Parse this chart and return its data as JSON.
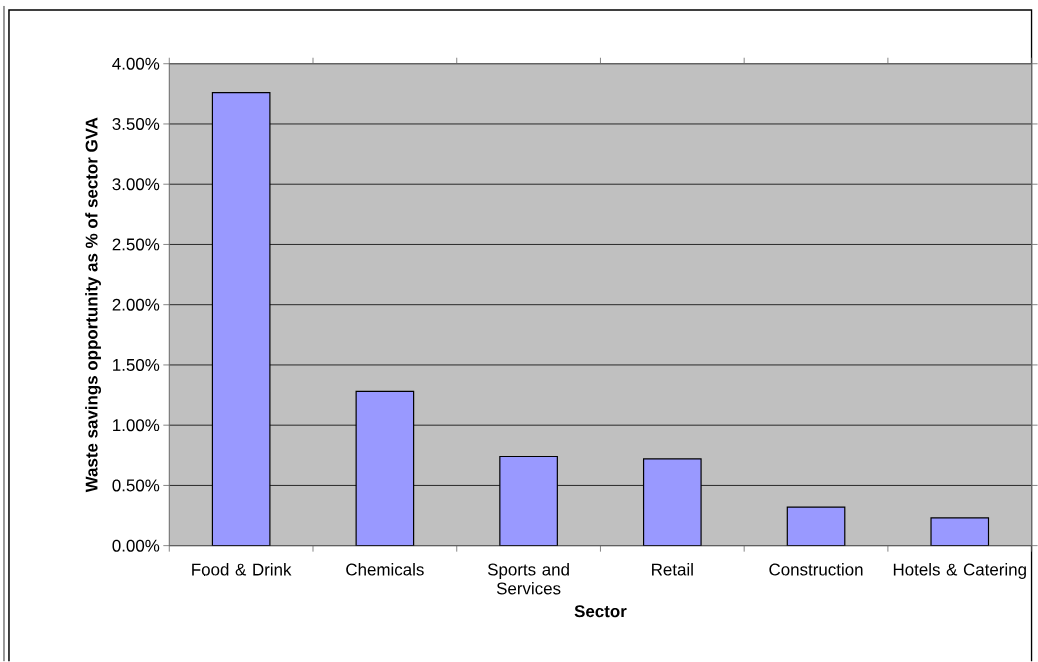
{
  "chart_data": {
    "type": "bar",
    "xlabel": "Sector",
    "ylabel": "Waste savings opportunity as % of sector GVA",
    "categories": [
      "Food & Drink",
      "Chemicals",
      "Sports and Services",
      "Retail",
      "Construction",
      "Hotels & Catering"
    ],
    "values": [
      3.76,
      1.28,
      0.74,
      0.72,
      0.32,
      0.23
    ],
    "color": "#9999ff",
    "ylim": [
      0,
      4
    ],
    "yticks": [
      {
        "value": 0,
        "label": "0.00%"
      },
      {
        "value": 0.5,
        "label": "0.50%"
      },
      {
        "value": 1,
        "label": "1.00%"
      },
      {
        "value": 1.5,
        "label": "1.50%"
      },
      {
        "value": 2,
        "label": "2.00%"
      },
      {
        "value": 2.5,
        "label": "2.50%"
      },
      {
        "value": 3,
        "label": "3.00%"
      },
      {
        "value": 3.5,
        "label": "3.50%"
      },
      {
        "value": 4,
        "label": "4.00%"
      }
    ],
    "grid": "y"
  }
}
